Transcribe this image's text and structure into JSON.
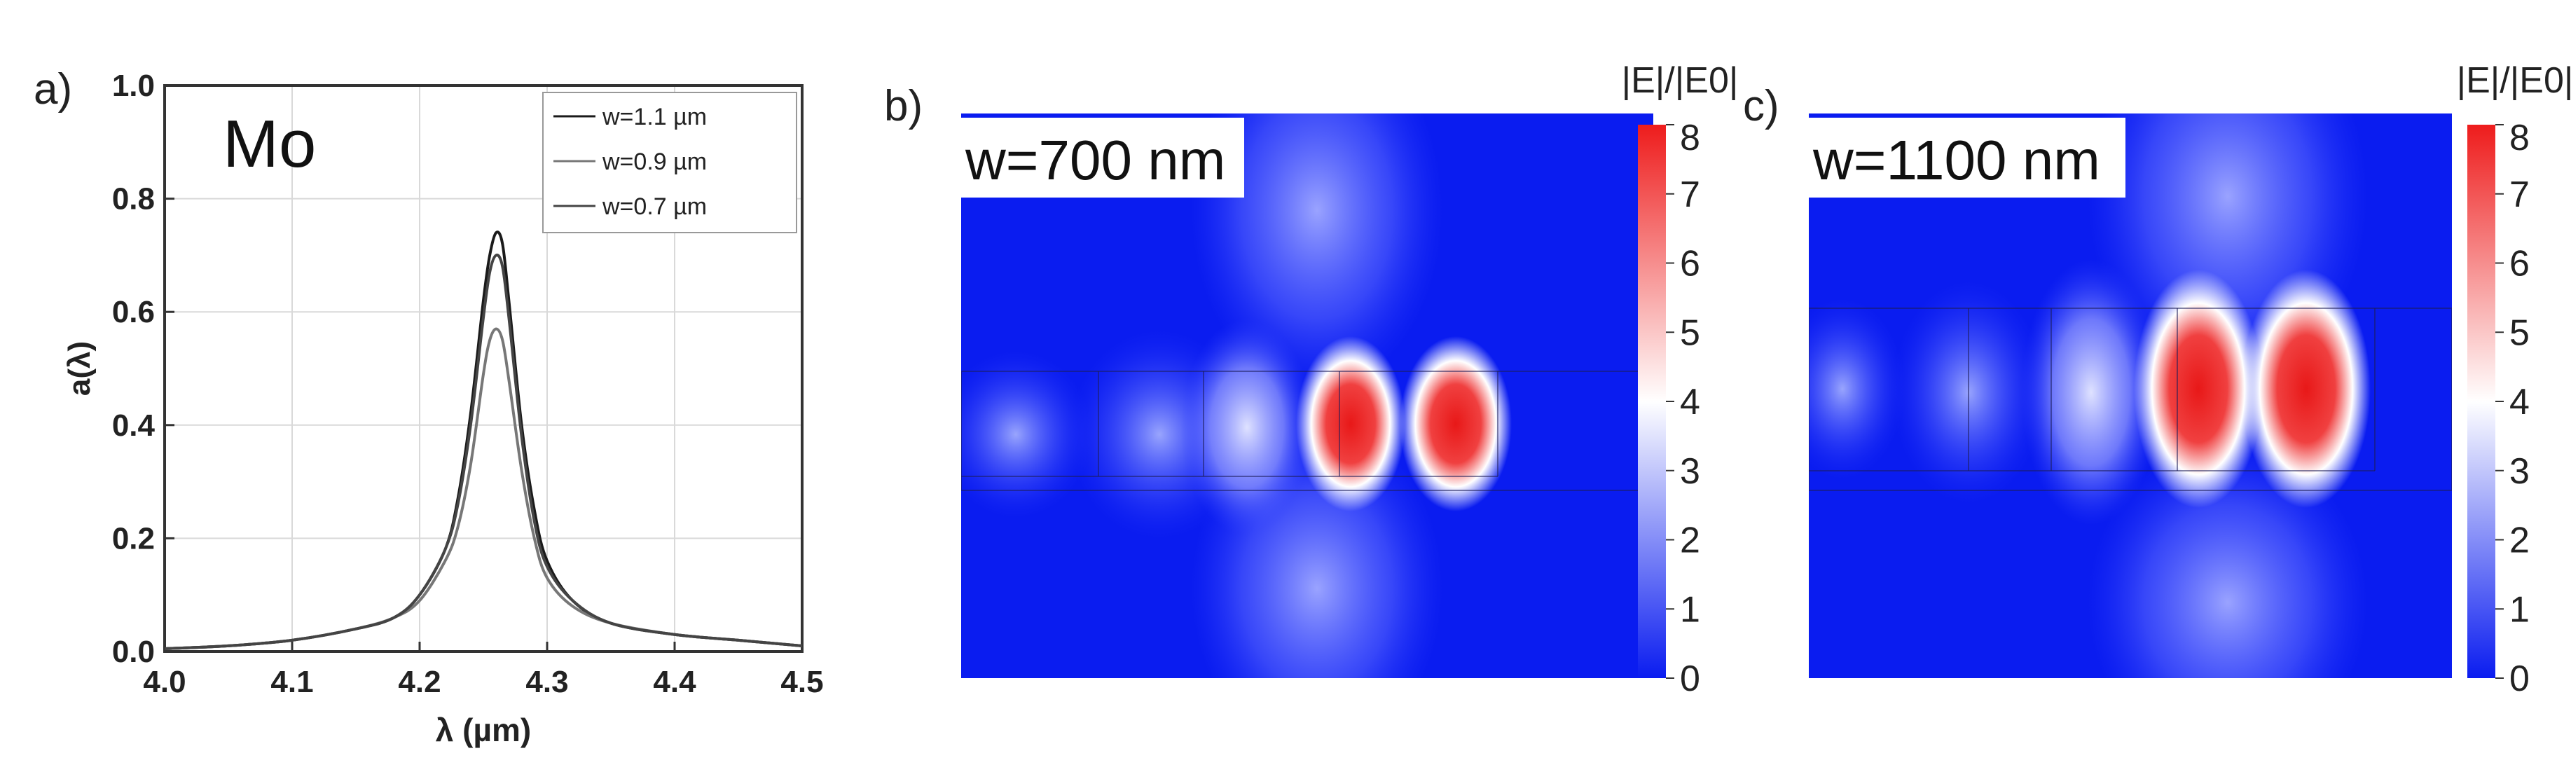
{
  "chart_data": [
    {
      "panel_label": "a)",
      "type": "line",
      "annotation": "Mo",
      "xlabel": "λ (µm)",
      "ylabel": "a(λ)",
      "xlim": [
        4.0,
        4.5
      ],
      "ylim": [
        0.0,
        1.0
      ],
      "xticks": [
        "4.0",
        "4.1",
        "4.2",
        "4.3",
        "4.4",
        "4.5"
      ],
      "yticks": [
        "0.0",
        "0.2",
        "0.4",
        "0.6",
        "0.8",
        "1.0"
      ],
      "grid": true,
      "legend_position": "top-right",
      "series": [
        {
          "name": "w=1.1 µm",
          "color": "#1a1a1a",
          "x": [
            4.0,
            4.05,
            4.1,
            4.15,
            4.18,
            4.2,
            4.22,
            4.23,
            4.24,
            4.25,
            4.255,
            4.26,
            4.265,
            4.27,
            4.28,
            4.29,
            4.3,
            4.32,
            4.35,
            4.4,
            4.45,
            4.5
          ],
          "values": [
            0.005,
            0.01,
            0.02,
            0.04,
            0.06,
            0.1,
            0.18,
            0.27,
            0.42,
            0.62,
            0.7,
            0.74,
            0.72,
            0.62,
            0.4,
            0.25,
            0.16,
            0.09,
            0.05,
            0.03,
            0.02,
            0.01
          ]
        },
        {
          "name": "w=0.9 µm",
          "color": "#777777",
          "x": [
            4.0,
            4.05,
            4.1,
            4.15,
            4.18,
            4.2,
            4.22,
            4.23,
            4.24,
            4.25,
            4.255,
            4.26,
            4.265,
            4.27,
            4.28,
            4.29,
            4.3,
            4.32,
            4.35,
            4.4,
            4.45,
            4.5
          ],
          "values": [
            0.005,
            0.01,
            0.02,
            0.04,
            0.06,
            0.09,
            0.16,
            0.22,
            0.33,
            0.49,
            0.55,
            0.57,
            0.55,
            0.48,
            0.32,
            0.2,
            0.13,
            0.08,
            0.05,
            0.03,
            0.02,
            0.01
          ]
        },
        {
          "name": "w=0.7 µm",
          "color": "#444444",
          "x": [
            4.0,
            4.05,
            4.1,
            4.15,
            4.18,
            4.2,
            4.22,
            4.23,
            4.24,
            4.25,
            4.255,
            4.26,
            4.265,
            4.27,
            4.28,
            4.29,
            4.3,
            4.32,
            4.35,
            4.4,
            4.45,
            4.5
          ],
          "values": [
            0.005,
            0.01,
            0.02,
            0.04,
            0.06,
            0.1,
            0.18,
            0.26,
            0.4,
            0.59,
            0.67,
            0.7,
            0.68,
            0.59,
            0.38,
            0.23,
            0.15,
            0.09,
            0.05,
            0.03,
            0.02,
            0.01
          ]
        }
      ]
    },
    {
      "panel_label": "b)",
      "type": "heatmap",
      "title": "|E|/|E0|",
      "annotation": "w=700 nm",
      "colorbar": {
        "min": 0,
        "max": 8,
        "ticks": [
          "0",
          "1",
          "2",
          "3",
          "4",
          "5",
          "6",
          "7",
          "8"
        ],
        "colors": [
          "#0a1cf0",
          "#ffffff",
          "#ee1c1c"
        ]
      }
    },
    {
      "panel_label": "c)",
      "type": "heatmap",
      "title": "|E|/|E0|",
      "annotation": "w=1100 nm",
      "colorbar": {
        "min": 0,
        "max": 8,
        "ticks": [
          "0",
          "1",
          "2",
          "3",
          "4",
          "5",
          "6",
          "7",
          "8"
        ],
        "colors": [
          "#0a1cf0",
          "#ffffff",
          "#ee1c1c"
        ]
      }
    }
  ]
}
